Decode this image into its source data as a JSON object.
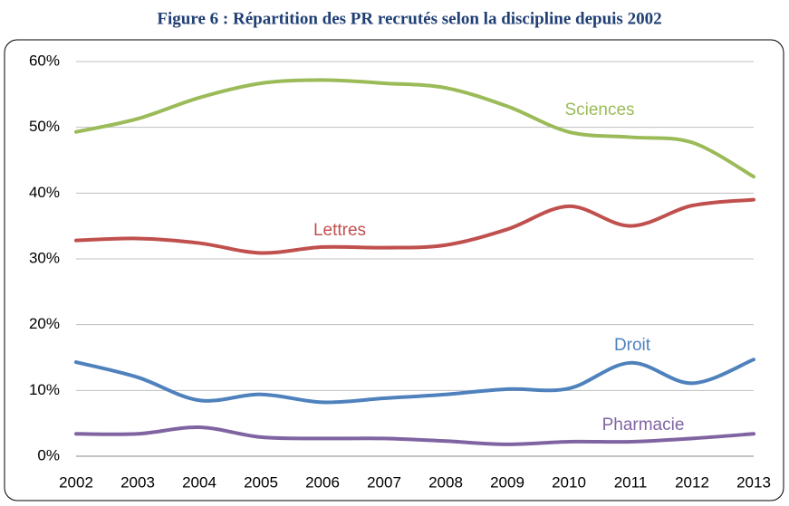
{
  "chart_data": {
    "type": "line",
    "title": "Figure 6 : Répartition des PR recrutés selon la discipline depuis 2002",
    "categories": [
      "2002",
      "2003",
      "2004",
      "2005",
      "2006",
      "2007",
      "2008",
      "2009",
      "2010",
      "2011",
      "2012",
      "2013"
    ],
    "series": [
      {
        "name": "Sciences",
        "color": "#9bbb59",
        "values": [
          49.3,
          51.3,
          54.5,
          56.7,
          57.2,
          56.7,
          56.0,
          53.2,
          49.3,
          48.5,
          47.7,
          42.5
        ]
      },
      {
        "name": "Lettres",
        "color": "#c0504d",
        "values": [
          32.8,
          33.1,
          32.4,
          30.9,
          31.8,
          31.7,
          32.1,
          34.5,
          38.0,
          35.0,
          38.1,
          39.0
        ]
      },
      {
        "name": "Droit",
        "color": "#4f81bd",
        "values": [
          14.3,
          12.0,
          8.5,
          9.4,
          8.2,
          8.8,
          9.4,
          10.2,
          10.3,
          14.2,
          11.1,
          14.7
        ]
      },
      {
        "name": "Pharmacie",
        "color": "#8064a2",
        "values": [
          3.4,
          3.4,
          4.4,
          2.9,
          2.7,
          2.7,
          2.3,
          1.8,
          2.2,
          2.2,
          2.7,
          3.4
        ]
      }
    ],
    "ylim": [
      0,
      60
    ],
    "yticks": [
      {
        "value": 0,
        "label": "0%"
      },
      {
        "value": 10,
        "label": "10%"
      },
      {
        "value": 20,
        "label": "20%"
      },
      {
        "value": 30,
        "label": "30%"
      },
      {
        "value": 40,
        "label": "40%"
      },
      {
        "value": 50,
        "label": "50%"
      },
      {
        "value": 60,
        "label": "60%"
      }
    ],
    "grid": true
  }
}
